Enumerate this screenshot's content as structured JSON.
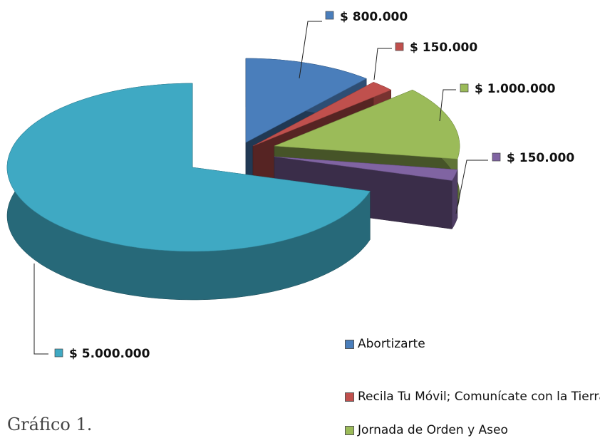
{
  "chart_data": {
    "type": "pie3d",
    "categories": [
      "Abortizarte",
      "Recila Tu Móvil; Comunícate con la Tierra",
      "Jornada de Orden y Aseo",
      null,
      null
    ],
    "values": [
      800000,
      150000,
      1000000,
      150000,
      5000000
    ],
    "value_labels": [
      "$ 800.000",
      "$ 150.000",
      "$ 1.000.000",
      "$ 150.000",
      "$ 5.000.000"
    ],
    "colors": [
      "#4a7ebb",
      "#c0504d",
      "#9bbb59",
      "#8064a2",
      "#3fa9c3"
    ]
  },
  "caption": "Gráfico 1."
}
